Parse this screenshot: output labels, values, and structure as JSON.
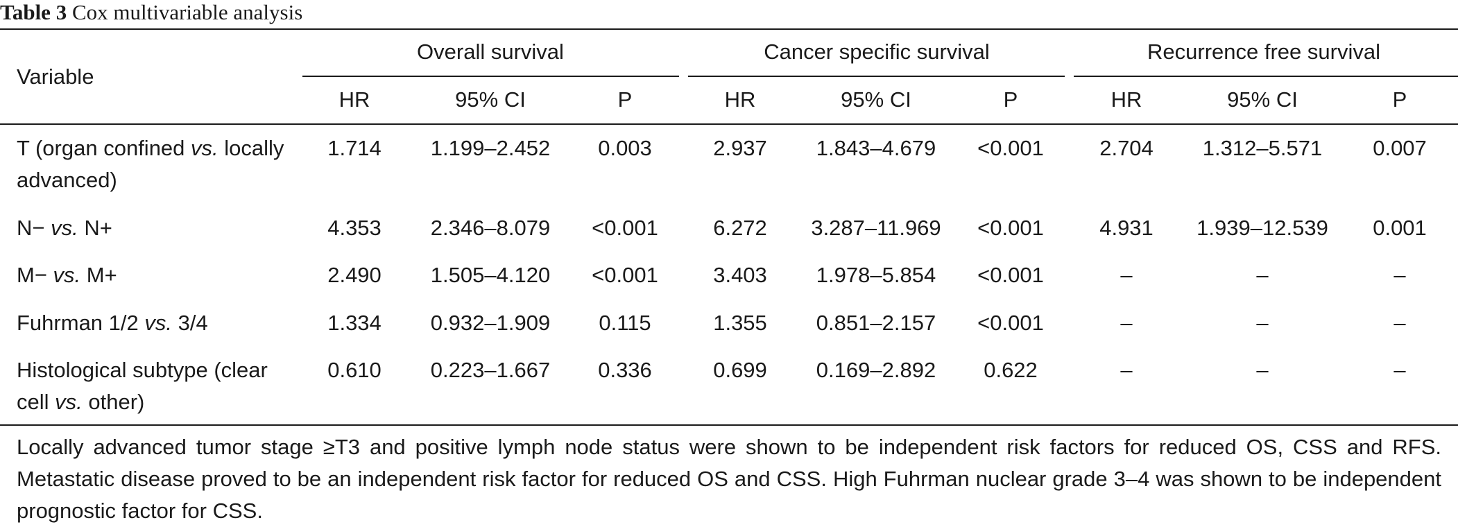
{
  "caption": {
    "label": "Table 3",
    "title": "Cox multivariable analysis"
  },
  "header": {
    "variable": "Variable",
    "groups": [
      "Overall survival",
      "Cancer specific survival",
      "Recurrence free survival"
    ],
    "subcolumns": [
      "HR",
      "95% CI",
      "P"
    ]
  },
  "rows": [
    {
      "variable": {
        "a": "T (organ confined ",
        "vs": "vs.",
        "b": " locally advanced)"
      },
      "values": [
        "1.714",
        "1.199–2.452",
        "0.003",
        "2.937",
        "1.843–4.679",
        "<0.001",
        "2.704",
        "1.312–5.571",
        "0.007"
      ]
    },
    {
      "variable": {
        "a": "N− ",
        "vs": "vs.",
        "b": " N+"
      },
      "values": [
        "4.353",
        "2.346–8.079",
        "<0.001",
        "6.272",
        "3.287–11.969",
        "<0.001",
        "4.931",
        "1.939–12.539",
        "0.001"
      ]
    },
    {
      "variable": {
        "a": "M− ",
        "vs": "vs.",
        "b": " M+"
      },
      "values": [
        "2.490",
        "1.505–4.120",
        "<0.001",
        "3.403",
        "1.978–5.854",
        "<0.001",
        "–",
        "–",
        "–"
      ]
    },
    {
      "variable": {
        "a": "Fuhrman 1/2 ",
        "vs": "vs.",
        "b": " 3/4"
      },
      "values": [
        "1.334",
        "0.932–1.909",
        "0.115",
        "1.355",
        "0.851–2.157",
        "<0.001",
        "–",
        "–",
        "–"
      ]
    },
    {
      "variable": {
        "a": "Histological subtype (clear cell ",
        "vs": "vs.",
        "b": " other)"
      },
      "values": [
        "0.610",
        "0.223–1.667",
        "0.336",
        "0.699",
        "0.169–2.892",
        "0.622",
        "–",
        "–",
        "–"
      ]
    }
  ],
  "footnote": "Locally advanced tumor stage ≥T3 and positive lymph node status were shown to be independent risk factors for reduced OS, CSS and RFS. Metastatic disease proved to be an independent risk factor for reduced OS and CSS. High Fuhrman nuclear grade 3–4 was shown to be independent prognostic factor for CSS."
}
